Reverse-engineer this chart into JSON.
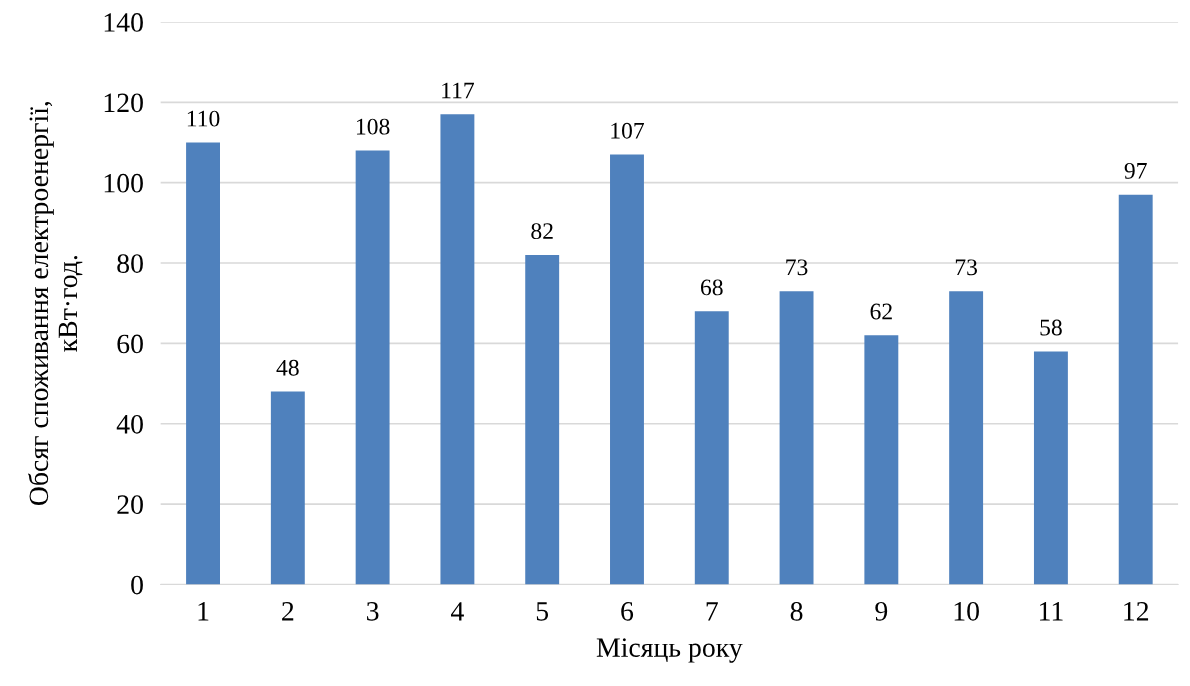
{
  "chart_data": {
    "type": "bar",
    "xlabel": "Місяць року",
    "ylabel": "Обсяг споживання електроенергії,\nкВт·год.",
    "categories": [
      "1",
      "2",
      "3",
      "4",
      "5",
      "6",
      "7",
      "8",
      "9",
      "10",
      "11",
      "12"
    ],
    "values": [
      110,
      48,
      108,
      117,
      82,
      107,
      68,
      73,
      62,
      73,
      58,
      97
    ],
    "color": "#4f81bd",
    "ylim": [
      0,
      140
    ],
    "yticks": [
      0,
      20,
      40,
      60,
      80,
      100,
      120,
      140
    ],
    "grid": "y",
    "data_labels": true
  }
}
